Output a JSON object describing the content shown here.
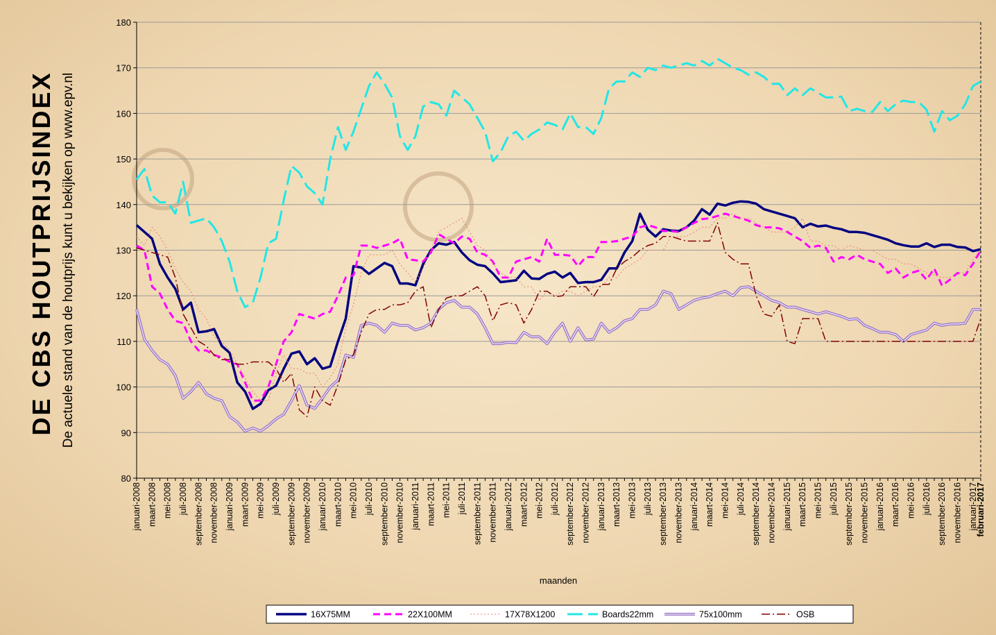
{
  "chart_data": {
    "type": "line",
    "title": "DE CBS HOUTPRIJSINDEX",
    "subtitle": "De actuele stand van de houtprijs kunt u bekijken op www.epv.nl",
    "x_label": "maanden",
    "categories": [
      "januari-2008",
      null,
      "maart-2008",
      null,
      "mei-2008",
      null,
      "juli-2008",
      null,
      "september-2008",
      null,
      "november-2008",
      null,
      "januari-2009",
      null,
      "maart-2009",
      null,
      "mei-2009",
      null,
      "juli-2009",
      null,
      "september-2009",
      null,
      "november-2009",
      null,
      "januari-2010",
      null,
      "maart-2010",
      null,
      "mei-2010",
      null,
      "juli-2010",
      null,
      "september-2010",
      null,
      "november-2010",
      null,
      "januari-2011",
      null,
      "maart-2011",
      null,
      "mei-2011",
      null,
      "juli-2011",
      null,
      "september-2011",
      null,
      "november-2011",
      null,
      "januari-2012",
      null,
      "maart-2012",
      null,
      "mei-2012",
      null,
      "juli-2012",
      null,
      "september-2012",
      null,
      "november-2012",
      null,
      "januari-2013",
      null,
      "maart-2013",
      null,
      "mei-2013",
      null,
      "juli-2013",
      null,
      "september-2013",
      null,
      "november-2013",
      null,
      "januari-2014",
      null,
      "maart-2014",
      null,
      "mei-2014",
      null,
      "juli-2014",
      null,
      "september-2014",
      null,
      "november-2014",
      null,
      "januari-2015",
      null,
      "maart-2015",
      null,
      "mei-2015",
      null,
      "juli-2015",
      null,
      "september-2015",
      null,
      "november-2015",
      null,
      "januari-2016",
      null,
      "maart-2016",
      null,
      "mei-2016",
      null,
      "juli-2016",
      null,
      "september-2016",
      null,
      "november-2016",
      null,
      "januari-2017",
      "februari-2017"
    ],
    "ylim": [
      80,
      180
    ],
    "yticks": [
      80,
      90,
      100,
      110,
      120,
      130,
      140,
      150,
      160,
      170,
      180
    ],
    "grid": true,
    "legend": "bottom",
    "series": [
      {
        "name": "16X75MM",
        "color": "#000080",
        "dash": "solid",
        "width": 3.5,
        "values": [
          135.5,
          134,
          132.5,
          127,
          124,
          121.5,
          117,
          118.5,
          112,
          112.2,
          112.7,
          109,
          107.5,
          101,
          99,
          95.2,
          96.3,
          99.3,
          100.3,
          104,
          107.3,
          107.8,
          105,
          106.3,
          104,
          104.5,
          110,
          115,
          126.5,
          126.2,
          124.8,
          126,
          127.2,
          126.5,
          122.7,
          122.7,
          122.3,
          127,
          130,
          131.5,
          131.2,
          131.8,
          129.5,
          127.8,
          126.8,
          126.5,
          124.9,
          123,
          123.2,
          123.4,
          125.5,
          123.8,
          123.7,
          124.8,
          125.3,
          124,
          125,
          122.8,
          123,
          123,
          123.5,
          126,
          126,
          129.5,
          132,
          138,
          134.5,
          133,
          134.6,
          134.3,
          134.2,
          135,
          136.5,
          139,
          137.8,
          140.2,
          139.8,
          140.4,
          140.7,
          140.6,
          140.2,
          139,
          138.5,
          138,
          137.5,
          137,
          135,
          135.8,
          135.2,
          135.4,
          134.9,
          134.6,
          134,
          134,
          133.8,
          133.3,
          132.8,
          132.3,
          131.5,
          131.1,
          130.8,
          130.8,
          131.5,
          130.7,
          131.2,
          131.2,
          130.7,
          130.6,
          129.8,
          130.2
        ]
      },
      {
        "name": "22X100MM",
        "color": "#ff00ff",
        "dash": "dash",
        "width": 3,
        "values": [
          131,
          130,
          122,
          120.5,
          117,
          114.5,
          114,
          110,
          108,
          108,
          107,
          106.5,
          105.5,
          105,
          101,
          97,
          97,
          100,
          105,
          110,
          112,
          116,
          115.5,
          115,
          116,
          116.5,
          120,
          124,
          124.5,
          131,
          131,
          130.5,
          131,
          131.5,
          132.5,
          128,
          127.8,
          127.5,
          129.5,
          133.5,
          132.5,
          131.5,
          133,
          132.5,
          129.5,
          129,
          127.5,
          124,
          124,
          127.5,
          128,
          128.5,
          127.5,
          132.5,
          129,
          129,
          128.8,
          126.5,
          128.5,
          128.5,
          131.8,
          131.8,
          132,
          132.5,
          133,
          135,
          135.5,
          135,
          134.2,
          134.2,
          134,
          135,
          136,
          136.8,
          137,
          137.5,
          138,
          137.5,
          137,
          136.5,
          135.5,
          135,
          135,
          134.8,
          134,
          133,
          132,
          130.5,
          131,
          130.5,
          127.5,
          128.5,
          128,
          129,
          128,
          127.5,
          127,
          125,
          126,
          124,
          125,
          125.5,
          123.5,
          126,
          122.2,
          123.5,
          125,
          124.5,
          127,
          130
        ]
      },
      {
        "name": "17X78X1200",
        "color": "#e8806a",
        "dash": "dot",
        "width": 1,
        "values": [
          133,
          131,
          135,
          133,
          130,
          126,
          123,
          121,
          117,
          115,
          111,
          110,
          108,
          105,
          102,
          99,
          97,
          97,
          103,
          107,
          104,
          104,
          103,
          103,
          100,
          102,
          105,
          113,
          118,
          125,
          129,
          129,
          129,
          130,
          127,
          125,
          123,
          126,
          130,
          134,
          135,
          136,
          137,
          134,
          131,
          130,
          127,
          125,
          124,
          124,
          122,
          122,
          119,
          121,
          120,
          121,
          121,
          120,
          121,
          122,
          122,
          124,
          124,
          126,
          127,
          128,
          130,
          130,
          130,
          133,
          133,
          133,
          134,
          135,
          135,
          137,
          137,
          138,
          137,
          137,
          136,
          135,
          134,
          134,
          134,
          135,
          137,
          132,
          132,
          131,
          131,
          130,
          131,
          130.5,
          130,
          130,
          129,
          128,
          128,
          127,
          127,
          126,
          125,
          124.5,
          124,
          124,
          125,
          125,
          128,
          130
        ]
      },
      {
        "name": "Boards22mm",
        "color": "#22e6e6",
        "dash": "longdash",
        "width": 3,
        "values": [
          145.5,
          147.8,
          142,
          140.5,
          140.5,
          138,
          145,
          136,
          136.5,
          137,
          135,
          132,
          127.5,
          121,
          117.5,
          118.5,
          124,
          131.5,
          132.5,
          141,
          148.5,
          147,
          144,
          142.5,
          140,
          150,
          157,
          152,
          156,
          161,
          166,
          169,
          166.5,
          163.5,
          155,
          152,
          155,
          161.5,
          162.5,
          162,
          159.5,
          165,
          163.5,
          162,
          159,
          156,
          149.5,
          151.5,
          155,
          156,
          154,
          155.5,
          156.5,
          158,
          157.5,
          156.5,
          160,
          157,
          157,
          155.5,
          159,
          165.5,
          167,
          167,
          169,
          168,
          170,
          169.5,
          170.5,
          170,
          170.5,
          171,
          170.5,
          171.5,
          170.5,
          172,
          171,
          170,
          169.5,
          168.5,
          169,
          168,
          166.5,
          166.5,
          164,
          165.5,
          164,
          165.5,
          164.5,
          163.5,
          163.5,
          163.7,
          160.5,
          161,
          160.5,
          160.3,
          162.5,
          160.5,
          162,
          162.8,
          162.5,
          162.5,
          160.8,
          156,
          160.5,
          158.5,
          159.5,
          162,
          166,
          167
        ]
      },
      {
        "name": "75x100mm",
        "color": "#9b78c4",
        "dash": "double",
        "width": 4,
        "values": [
          117,
          110.5,
          108,
          106,
          105,
          102.5,
          97.5,
          99,
          101,
          98.5,
          97.5,
          97,
          93.5,
          92.3,
          90.3,
          91,
          90.3,
          91.5,
          93,
          94,
          97,
          100.3,
          96,
          95.3,
          97.5,
          100,
          101.5,
          107,
          106.5,
          113.5,
          114,
          113.5,
          112,
          114,
          113.5,
          113.5,
          112.5,
          113,
          114,
          117,
          118.5,
          119,
          117.5,
          117.5,
          116,
          113,
          109.5,
          109.5,
          109.8,
          109.7,
          112,
          111,
          111,
          109.5,
          112,
          114,
          110,
          113,
          110.3,
          110.5,
          114,
          112,
          113,
          114.5,
          115,
          117,
          117,
          118,
          121,
          120.5,
          117,
          118,
          119,
          119.5,
          119.8,
          120.5,
          121,
          120,
          121.8,
          122,
          121,
          120,
          119,
          118.5,
          117.5,
          117.5,
          117,
          116.5,
          116,
          116.5,
          116,
          115.5,
          114.8,
          115,
          113.5,
          112.8,
          112,
          112,
          111.5,
          110,
          111.5,
          112,
          112.5,
          114,
          113.5,
          113.8,
          113.8,
          114,
          117,
          117
        ]
      },
      {
        "name": "OSB",
        "color": "#800000",
        "dash": "dashdot",
        "width": 1.5,
        "values": [
          130.5,
          130,
          129.5,
          129,
          128.5,
          124,
          116,
          113,
          110,
          109,
          107,
          106,
          106,
          105,
          105,
          105.5,
          105.5,
          105.5,
          104,
          101,
          103,
          95,
          93.5,
          100,
          97,
          96,
          100.5,
          106,
          107,
          112,
          116,
          117,
          117,
          118,
          118,
          118.5,
          121,
          122,
          113,
          117,
          119.5,
          120,
          120,
          121,
          122,
          120,
          114.5,
          118,
          118.5,
          118,
          114,
          117,
          121,
          121,
          119.8,
          120,
          122,
          122,
          122,
          119.8,
          122.5,
          122.5,
          126,
          127.5,
          128.5,
          130,
          131,
          131.5,
          133,
          133,
          132.5,
          132,
          132,
          132,
          132,
          136,
          129.5,
          128,
          127,
          127,
          120,
          116,
          115.5,
          118,
          110,
          109.5,
          115,
          115,
          115,
          110,
          110,
          110,
          110,
          110,
          110,
          110,
          110,
          110,
          110,
          110,
          110,
          110,
          110,
          110,
          110,
          110,
          110,
          110,
          110,
          115
        ]
      }
    ]
  }
}
